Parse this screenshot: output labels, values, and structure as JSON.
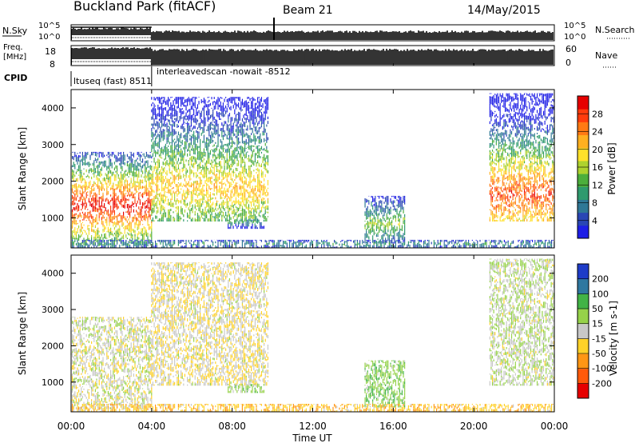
{
  "header": {
    "title": "Buckland Park (fitACF)",
    "beam": "Beam 21",
    "date": "14/May/2015"
  },
  "summary": {
    "nsky_label": "N.Sky",
    "nsky_tick_top": "10^5",
    "nsky_tick_bottom": "10^0",
    "nsearch_label": "N.Search",
    "nsearch_tick_top": "10^5",
    "nsearch_tick_bottom": "10^0",
    "freq_label_1": "Freq.",
    "freq_label_2": "[MHz]",
    "freq_tick_top": "18",
    "freq_tick_bottom": "8",
    "nave_label": "Nave",
    "nave_tick_top": "60",
    "nave_tick_bottom": "0",
    "cpid_label": "CPID",
    "cpid_1": "ltuseq (fast) 8511",
    "cpid_2": "interleavedscan -nowait -8512",
    "cpid_switch_hour": 4
  },
  "time_axis": {
    "label": "Time UT",
    "ticks": [
      "00:00",
      "04:00",
      "08:00",
      "12:00",
      "16:00",
      "20:00",
      "00:00"
    ],
    "range_hours": [
      0,
      24
    ]
  },
  "range_axis": {
    "label": "Slant Range [km]",
    "ticks": [
      "1000",
      "2000",
      "3000",
      "4000"
    ],
    "range_km": [
      180,
      4500
    ]
  },
  "power_scale": {
    "label": "Power [dB]",
    "ticks": [
      "4",
      "8",
      "12",
      "16",
      "20",
      "24",
      "28"
    ],
    "colors": [
      "#1e1ee6",
      "#2a46b4",
      "#2f7896",
      "#2f9a6e",
      "#4cae3c",
      "#aed22e",
      "#ffe12a",
      "#ffb020",
      "#ff7a14",
      "#ff3c0c",
      "#e60000"
    ]
  },
  "velocity_scale": {
    "label": "Velocity [m s-1]",
    "ticks": [
      "200",
      "100",
      "50",
      "15",
      "-15",
      "-50",
      "-100",
      "-200"
    ],
    "colors": [
      "#1e3cc8",
      "#2f78a0",
      "#42b446",
      "#96d24a",
      "#c8c8c8",
      "#ffd228",
      "#ff9614",
      "#ff5a0a",
      "#e60000"
    ]
  },
  "chart_data": [
    {
      "type": "line",
      "name": "N.Sky / N.Search",
      "x_hours": [
        0,
        4,
        8,
        12,
        16,
        20,
        24
      ],
      "yscale": "log",
      "ylim": [
        1,
        100000
      ]
    },
    {
      "type": "line",
      "name": "Frequency / Nave",
      "x_hours": [
        0,
        4,
        8,
        12,
        16,
        20,
        24
      ],
      "ylim_freq_mhz": [
        8,
        18
      ],
      "ylim_nave": [
        0,
        60
      ]
    },
    {
      "type": "heatmap",
      "quantity": "Power [dB]",
      "x_hours": [
        0,
        24
      ],
      "y_km": [
        180,
        4500
      ],
      "zlim": [
        0,
        30
      ],
      "echo_regions": [
        {
          "t0": 0.0,
          "t1": 4.0,
          "r0": 250,
          "r1": 2800,
          "peak_km": 1300,
          "peak_db": 29
        },
        {
          "t0": 4.0,
          "t1": 9.8,
          "r0": 900,
          "r1": 4300,
          "peak_km": 1800,
          "peak_db": 20
        },
        {
          "t0": 7.8,
          "t1": 9.6,
          "r0": 700,
          "r1": 950,
          "peak_km": 850,
          "peak_db": 10
        },
        {
          "t0": 14.6,
          "t1": 16.6,
          "r0": 300,
          "r1": 1600,
          "peak_km": 800,
          "peak_db": 14
        },
        {
          "t0": 20.8,
          "t1": 24.0,
          "r0": 900,
          "r1": 4400,
          "peak_km": 1600,
          "peak_db": 26
        },
        {
          "t0": 0.0,
          "t1": 24.0,
          "r0": 180,
          "r1": 400,
          "peak_km": 250,
          "peak_db": 10
        }
      ]
    },
    {
      "type": "heatmap",
      "quantity": "Velocity [m s-1]",
      "x_hours": [
        0,
        24
      ],
      "y_km": [
        180,
        4500
      ],
      "zlim": [
        -200,
        200
      ],
      "echo_regions": [
        {
          "t0": 0.0,
          "t1": 4.0,
          "r0": 250,
          "r1": 2800,
          "mean_ms": 0
        },
        {
          "t0": 4.0,
          "t1": 9.8,
          "r0": 900,
          "r1": 4300,
          "mean_ms": -10
        },
        {
          "t0": 7.8,
          "t1": 9.6,
          "r0": 700,
          "r1": 950,
          "mean_ms": 30
        },
        {
          "t0": 14.6,
          "t1": 16.6,
          "r0": 300,
          "r1": 1600,
          "mean_ms": 40
        },
        {
          "t0": 20.8,
          "t1": 24.0,
          "r0": 900,
          "r1": 4400,
          "mean_ms": 10
        },
        {
          "t0": 16.0,
          "t1": 23.0,
          "r0": 180,
          "r1": 500,
          "mean_ms": -40
        }
      ]
    }
  ]
}
